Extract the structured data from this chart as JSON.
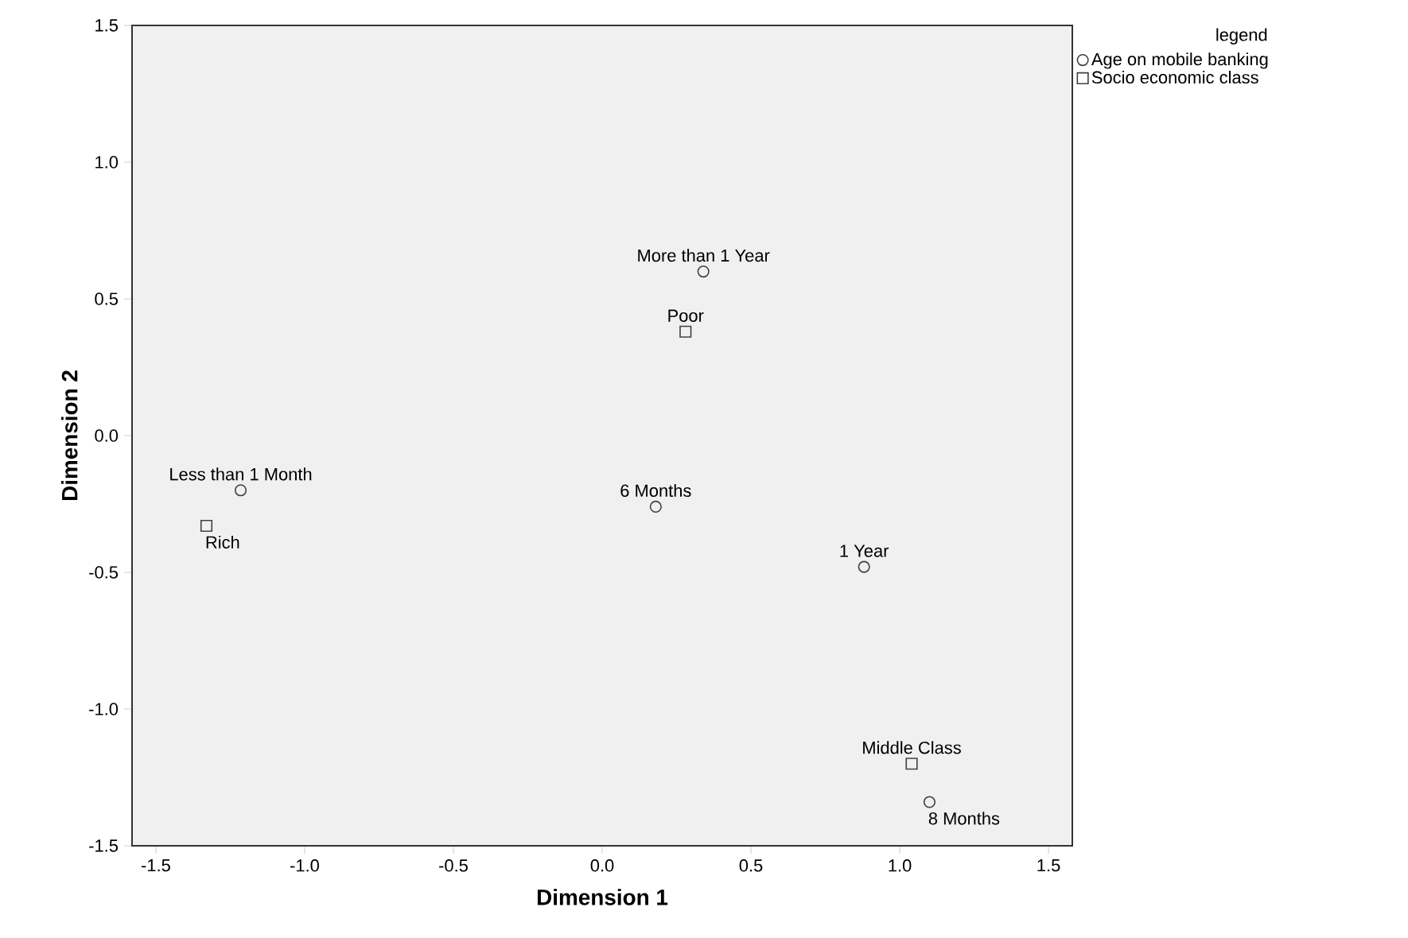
{
  "chart_data": {
    "type": "scatter",
    "xlabel": "Dimension 1",
    "ylabel": "Dimension 2",
    "legend_title": "legend",
    "legend": "top right",
    "xlim": [
      -1.58,
      1.58
    ],
    "xticks": [
      {
        "value": -1.5,
        "label": "-1.5"
      },
      {
        "value": -1.0,
        "label": "-1.0"
      },
      {
        "value": -0.5,
        "label": "-0.5"
      },
      {
        "value": 0.0,
        "label": "0.0"
      },
      {
        "value": 0.5,
        "label": "0.5"
      },
      {
        "value": 1.0,
        "label": "1.0"
      },
      {
        "value": 1.5,
        "label": "1.5"
      }
    ],
    "ylim": [
      -1.5,
      1.5
    ],
    "yticks": [
      {
        "value": -1.5,
        "label": "-1.5"
      },
      {
        "value": -1.0,
        "label": "-1.0"
      },
      {
        "value": -0.5,
        "label": "-0.5"
      },
      {
        "value": 0.0,
        "label": "0.0"
      },
      {
        "value": 0.5,
        "label": "0.5"
      },
      {
        "value": 1.0,
        "label": "1.0"
      },
      {
        "value": 1.5,
        "label": "1.5"
      }
    ],
    "grid": false,
    "series": [
      {
        "name": "Age on mobile banking",
        "color": "#404040",
        "marker": "circle",
        "x": [
          0.34,
          -1.215,
          0.18,
          0.88,
          1.1
        ],
        "values": [
          0.6,
          -0.2,
          -0.26,
          -0.48,
          -1.34
        ]
      },
      {
        "name": "Socio economic class",
        "color": "#404040",
        "marker": "square",
        "x": [
          0.28,
          -1.33,
          1.04
        ],
        "values": [
          0.38,
          -0.33,
          -1.2
        ]
      }
    ],
    "annotations": [
      {
        "text": "More than 1 Year",
        "x": 0.34,
        "y": 0.6
      },
      {
        "text": "Less than 1 Month",
        "x": -1.215,
        "y": -0.2
      },
      {
        "text": "6 Months",
        "x": 0.18,
        "y": -0.26
      },
      {
        "text": "1 Year",
        "x": 0.88,
        "y": -0.48
      },
      {
        "text": "8 Months",
        "x": 1.1,
        "y": -1.34
      },
      {
        "text": "Poor",
        "x": 0.28,
        "y": 0.38
      },
      {
        "text": "Rich",
        "x": -1.33,
        "y": -0.33
      },
      {
        "text": "Middle Class",
        "x": 1.04,
        "y": -1.2
      }
    ]
  }
}
